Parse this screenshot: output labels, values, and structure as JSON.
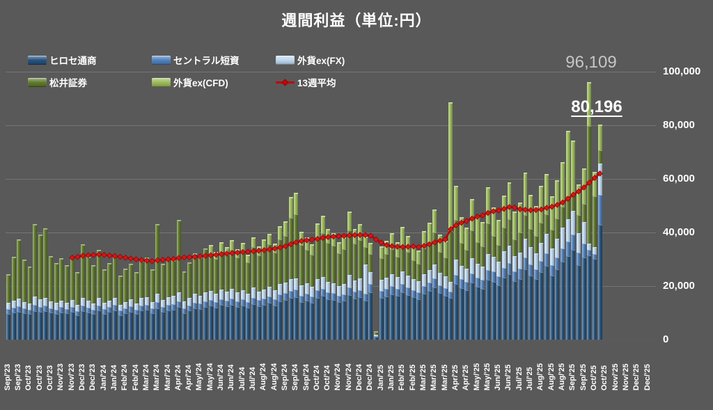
{
  "title": "週間利益（単位:円）",
  "annotations": {
    "peak": "96,109",
    "latest": "80,196"
  },
  "y_axis": {
    "ticks": [
      "0",
      "20,000",
      "40,000",
      "60,000",
      "80,000",
      "100,000"
    ],
    "max": 100000
  },
  "legend": [
    {
      "label": "ヒロセ通商",
      "key": "hirose",
      "type": "swatch"
    },
    {
      "label": "セントラル短資",
      "key": "central",
      "type": "swatch"
    },
    {
      "label": "外貨ex(FX)",
      "key": "fx",
      "type": "swatch"
    },
    {
      "label": "松井証券",
      "key": "matsui",
      "type": "swatch"
    },
    {
      "label": "外貨ex(CFD)",
      "key": "cfd",
      "type": "swatch"
    },
    {
      "label": "13週平均",
      "key": "avg",
      "type": "line"
    }
  ],
  "colors": {
    "hirose": "#25527C",
    "central": "#4F81BD",
    "fx": "#BDD7EE",
    "matsui": "#5F7A2B",
    "cfd": "#9BBB59",
    "avg": "#C00000",
    "background": "#595959",
    "text": "#FFFFFF",
    "annotation_gray": "#C6C6C6"
  },
  "chart_data": {
    "type": "bar",
    "subtype": "stacked-vertical-with-line-overlay",
    "title": "週間利益（単位:円）",
    "ylim": [
      0,
      100000
    ],
    "grid": "horizontal",
    "legend_position": "top-left",
    "axis_slots": 122,
    "tick_every": 2,
    "x_tick_labels": [
      "Sep/'23",
      "Sep/'23",
      "Oct/'23",
      "Oct/'23",
      "Oct/'23",
      "Nov/'23",
      "Nov/'23",
      "Dec/'23",
      "Dec/'23",
      "Jan/'24",
      "Jan/'24",
      "Feb/'24",
      "Feb/'24",
      "Mar/'24",
      "Mar/'24",
      "Mar/'24",
      "Apr/'24",
      "Apr/'24",
      "May/'24",
      "May/'24",
      "Jun/'24",
      "Jun/'24",
      "Jul/'24",
      "Jul/'24",
      "Aug/'24",
      "Aug/'24",
      "Sep/'24",
      "Sep/'24",
      "Sep/'24",
      "Oct/'24",
      "Oct/'24",
      "Nov/'24",
      "Nov/'24",
      "Dec/'24",
      "Dec/'24",
      "Jan/'25",
      "Jan/'25",
      "Feb/'25",
      "Feb/'25",
      "Mar/'25",
      "Mar/'25",
      "Mar/'25",
      "Apr/'25",
      "Apr/'25",
      "May/'25",
      "May/'25",
      "Jun/'25",
      "Jun/'25",
      "Jul/'25",
      "Jul/'25",
      "Aug/'25",
      "Aug/'25",
      "Aug/'25",
      "Sep/'25",
      "Sep/'25",
      "Oct/'25",
      "Oct/'25",
      "Nov/'25",
      "Nov/'25",
      "Dec/'25",
      "Dec/'25"
    ],
    "series": [
      {
        "name": "ヒロセ通商",
        "color": "#25527C",
        "values": [
          9800,
          10200,
          10500,
          9900,
          9600,
          10800,
          10400,
          10600,
          10100,
          9700,
          10300,
          9900,
          10400,
          9200,
          10800,
          10200,
          9600,
          10900,
          9800,
          10400,
          11000,
          9300,
          10100,
          10600,
          9700,
          10900,
          11200,
          10000,
          11800,
          10500,
          11100,
          11400,
          12200,
          10100,
          11000,
          11900,
          11500,
          12300,
          12700,
          12100,
          13000,
          12500,
          13200,
          12400,
          12900,
          12000,
          13400,
          12600,
          13100,
          13800,
          12900,
          14400,
          14800,
          15600,
          15900,
          14100,
          14700,
          13900,
          15800,
          16400,
          15200,
          14900,
          14100,
          14600,
          16800,
          15400,
          15900,
          14700,
          17800,
          1200,
          15700,
          16200,
          17100,
          16400,
          17900,
          16800,
          15900,
          15300,
          17200,
          18300,
          19600,
          17400,
          16600,
          15600,
          20900,
          19400,
          18600,
          21300,
          19800,
          19200,
          22400,
          21800,
          20400,
          23100,
          24600,
          21900,
          22800,
          26400,
          24100,
          22600,
          25300,
          27700,
          23900,
          26300,
          29200,
          31400,
          33600,
          27900,
          30800,
          31500,
          30200,
          43000
        ]
      },
      {
        "name": "セントラル短資",
        "color": "#4F81BD",
        "values": [
          1700,
          1900,
          2100,
          1800,
          1700,
          2200,
          2000,
          2100,
          1800,
          1700,
          1900,
          1700,
          1900,
          1600,
          2100,
          1900,
          1700,
          2000,
          1700,
          1800,
          2000,
          1600,
          1800,
          1900,
          1700,
          2000,
          2000,
          1800,
          2200,
          1900,
          2000,
          2000,
          2300,
          1800,
          1900,
          2100,
          2000,
          2200,
          2200,
          2100,
          2300,
          2200,
          2300,
          2100,
          2200,
          2100,
          2400,
          2200,
          2300,
          2400,
          2200,
          2500,
          2600,
          2700,
          2800,
          2400,
          2500,
          2400,
          2700,
          2800,
          2600,
          2500,
          2400,
          2500,
          2900,
          2600,
          2700,
          2500,
          3000,
          300,
          2700,
          2800,
          2900,
          2800,
          3100,
          2900,
          2700,
          2600,
          2900,
          3100,
          3300,
          3000,
          2800,
          2300,
          3500,
          3300,
          3200,
          3600,
          3400,
          3300,
          3800,
          3700,
          3500,
          3900,
          4200,
          3700,
          3900,
          4500,
          4100,
          3800,
          4300,
          4700,
          4100,
          4500,
          5000,
          5300,
          5700,
          4700,
          5200,
          2000,
          2000,
          11100
        ]
      },
      {
        "name": "外貨ex(FX)",
        "color": "#BDD7EE",
        "values": [
          2400,
          2600,
          2900,
          2500,
          2300,
          3100,
          2800,
          3000,
          2600,
          2400,
          2500,
          2300,
          2600,
          2200,
          2900,
          2600,
          2300,
          2800,
          2400,
          2600,
          2800,
          2200,
          2400,
          2600,
          2300,
          2700,
          2800,
          2400,
          3200,
          2600,
          2800,
          3000,
          3400,
          2600,
          2900,
          3200,
          3000,
          3300,
          3400,
          3200,
          3500,
          3300,
          3600,
          3300,
          3500,
          3100,
          3700,
          3300,
          3500,
          3700,
          3400,
          3900,
          4000,
          4300,
          4400,
          3800,
          3900,
          3600,
          4200,
          4400,
          4000,
          3900,
          3600,
          3800,
          4600,
          4100,
          4300,
          11000,
          4700,
          400,
          4100,
          4300,
          4500,
          4300,
          4700,
          4400,
          4200,
          4000,
          4500,
          4800,
          5200,
          4600,
          4400,
          3700,
          5500,
          5100,
          4900,
          5600,
          5200,
          5000,
          5900,
          5700,
          5400,
          6100,
          6500,
          5800,
          6000,
          7000,
          6400,
          6000,
          6700,
          7300,
          6300,
          7000,
          7700,
          8300,
          8900,
          7400,
          8100,
          2400,
          2500,
          11700
        ]
      },
      {
        "name": "松井証券",
        "color": "#5F7A2B",
        "values": [
          10600,
          16100,
          21900,
          15700,
          13700,
          27100,
          23900,
          25900,
          16700,
          14900,
          15700,
          13900,
          16100,
          12200,
          19800,
          16200,
          14300,
          17700,
          12400,
          13800,
          15300,
          10800,
          12200,
          13100,
          11400,
          13700,
          14600,
          12000,
          25900,
          13400,
          14300,
          13100,
          26700,
          10900,
          13100,
          15100,
          14200,
          16300,
          14100,
          13000,
          14500,
          13800,
          14700,
          13200,
          14300,
          12000,
          15200,
          13700,
          15100,
          15800,
          14200,
          16900,
          17600,
          23200,
          23800,
          15200,
          12700,
          12000,
          15300,
          16400,
          14600,
          13900,
          12400,
          13100,
          16700,
          13900,
          14500,
          6600,
          6600,
          1200,
          8000,
          8800,
          9600,
          7700,
          9900,
          8800,
          7100,
          6700,
          9600,
          10300,
          12200,
          7900,
          7200,
          19000,
          15000,
          8600,
          7000,
          10500,
          8100,
          7600,
          11500,
          7700,
          6300,
          8900,
          9900,
          6300,
          7400,
          8900,
          6900,
          6500,
          7500,
          7300,
          6900,
          7500,
          7800,
          8800,
          6100,
          6700,
          6800,
          44000,
          19000,
          5200
        ]
      },
      {
        "name": "外貨ex(CFD)",
        "color": "#9BBB59",
        "values": [
          0,
          0,
          0,
          0,
          0,
          0,
          0,
          0,
          0,
          0,
          0,
          0,
          0,
          0,
          0,
          0,
          0,
          0,
          0,
          0,
          0,
          0,
          0,
          0,
          0,
          0,
          0,
          0,
          0,
          0,
          0,
          0,
          0,
          0,
          0,
          0,
          0,
          0,
          2800,
          2400,
          3100,
          2800,
          3400,
          2900,
          3200,
          2600,
          3600,
          3000,
          3400,
          3900,
          3200,
          4600,
          5100,
          7400,
          7800,
          4700,
          4300,
          3800,
          5400,
          6200,
          4900,
          4600,
          3900,
          4200,
          6800,
          5200,
          5700,
          3600,
          4100,
          0,
          4300,
          4800,
          5600,
          5100,
          6500,
          5700,
          5000,
          4600,
          6200,
          7100,
          8400,
          6300,
          5800,
          48000,
          12400,
          9200,
          8100,
          11400,
          9600,
          8800,
          13200,
          10400,
          9100,
          11800,
          13400,
          10200,
          11100,
          15600,
          12600,
          10900,
          13500,
          14800,
          12400,
          14100,
          16500,
          24000,
          20000,
          11200,
          12900,
          16209,
          9000,
          9196
        ]
      }
    ],
    "line_series": {
      "name": "13週平均",
      "color": "#C00000",
      "start_index": 12,
      "values": [
        30600,
        30900,
        31300,
        31500,
        31600,
        31800,
        31600,
        31400,
        31200,
        30900,
        30600,
        30300,
        30000,
        29700,
        29500,
        29300,
        29600,
        29800,
        30000,
        30100,
        30500,
        30700,
        30800,
        30900,
        31100,
        31300,
        31500,
        31700,
        31900,
        32100,
        32300,
        32500,
        32700,
        32800,
        33000,
        33200,
        33400,
        33700,
        34000,
        34400,
        34900,
        35600,
        36300,
        36800,
        37100,
        37300,
        37600,
        38000,
        38300,
        38500,
        38600,
        38700,
        38900,
        39000,
        39100,
        39000,
        38800,
        37400,
        36200,
        35300,
        34900,
        34700,
        34600,
        34700,
        34800,
        34600,
        35000,
        35600,
        36300,
        36900,
        37400,
        41200,
        42700,
        43600,
        44300,
        45200,
        45900,
        46400,
        47300,
        47900,
        48200,
        48800,
        49500,
        49300,
        48700,
        48500,
        48300,
        48400,
        48600,
        49200,
        49600,
        50300,
        51200,
        52600,
        54100,
        55300,
        56800,
        58600,
        60400,
        62000
      ]
    },
    "annotations": [
      {
        "text": "96,109",
        "week_index": 109,
        "style": "gray"
      },
      {
        "text": "80,196",
        "week_index": 111,
        "style": "white-bold-underline"
      }
    ]
  }
}
